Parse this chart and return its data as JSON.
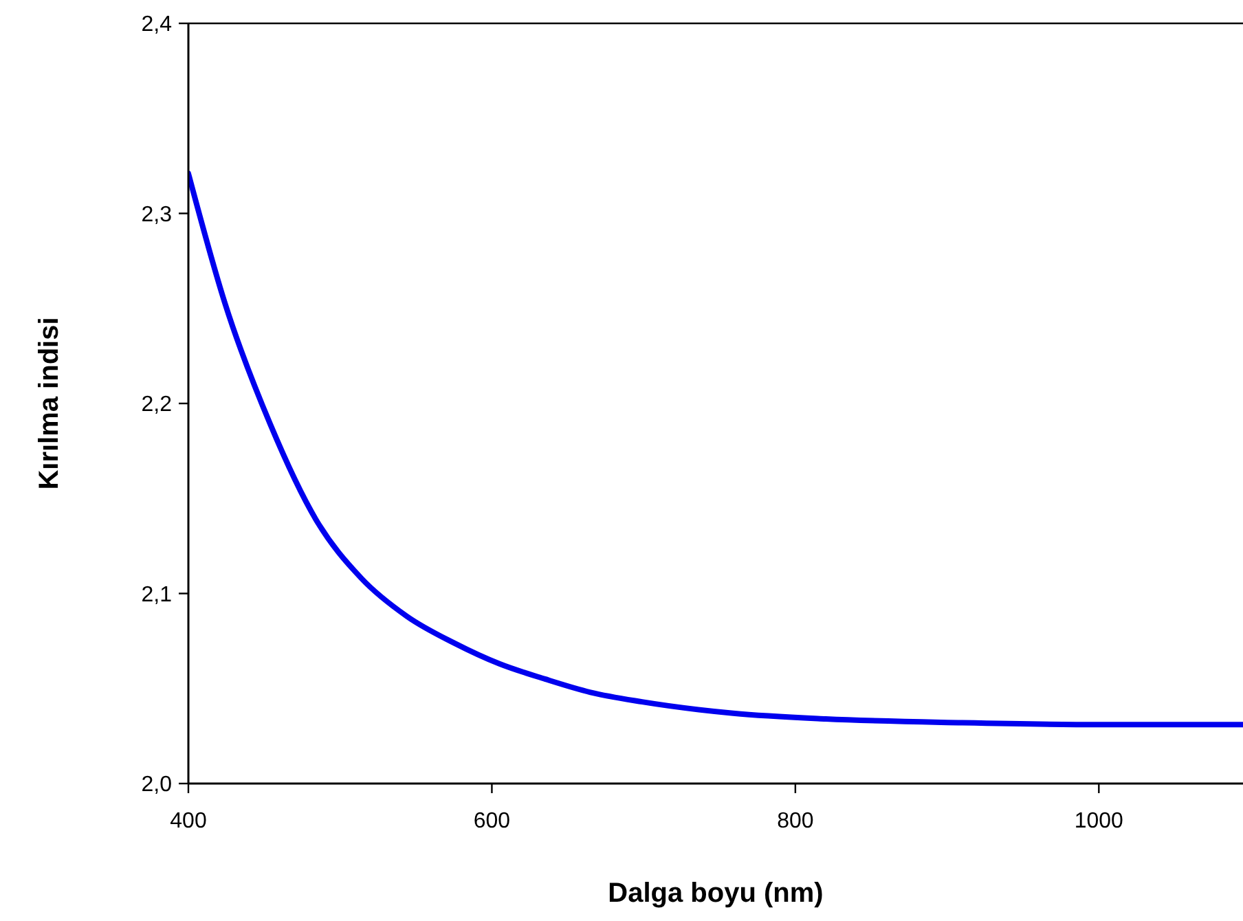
{
  "chart_data": {
    "type": "line",
    "xlabel": "Dalga boyu (nm)",
    "ylabel": "Kırılma indisi",
    "series": [
      {
        "color": "#0000ee",
        "x": [
          400,
          424,
          454,
          484,
          514,
          544,
          575,
          605,
          635,
          665,
          699,
          759,
          820,
          910,
          1001,
          1095
        ],
        "values": [
          2.321,
          2.253,
          2.189,
          2.139,
          2.108,
          2.088,
          2.074,
          2.063,
          2.055,
          2.048,
          2.043,
          2.037,
          2.034,
          2.032,
          2.031,
          2.031
        ]
      }
    ],
    "xlim": [
      400,
      1095
    ],
    "xticks": [
      400,
      600,
      800,
      1000
    ],
    "ylim": [
      2.0,
      2.4
    ],
    "yticks": [
      {
        "value": 2.0,
        "label": "2,0"
      },
      {
        "value": 2.1,
        "label": "2,1"
      },
      {
        "value": 2.2,
        "label": "2,2"
      },
      {
        "value": 2.3,
        "label": "2,3"
      },
      {
        "value": 2.4,
        "label": "2,4"
      }
    ],
    "grid": false,
    "marker": "none",
    "line_style": "solid"
  }
}
